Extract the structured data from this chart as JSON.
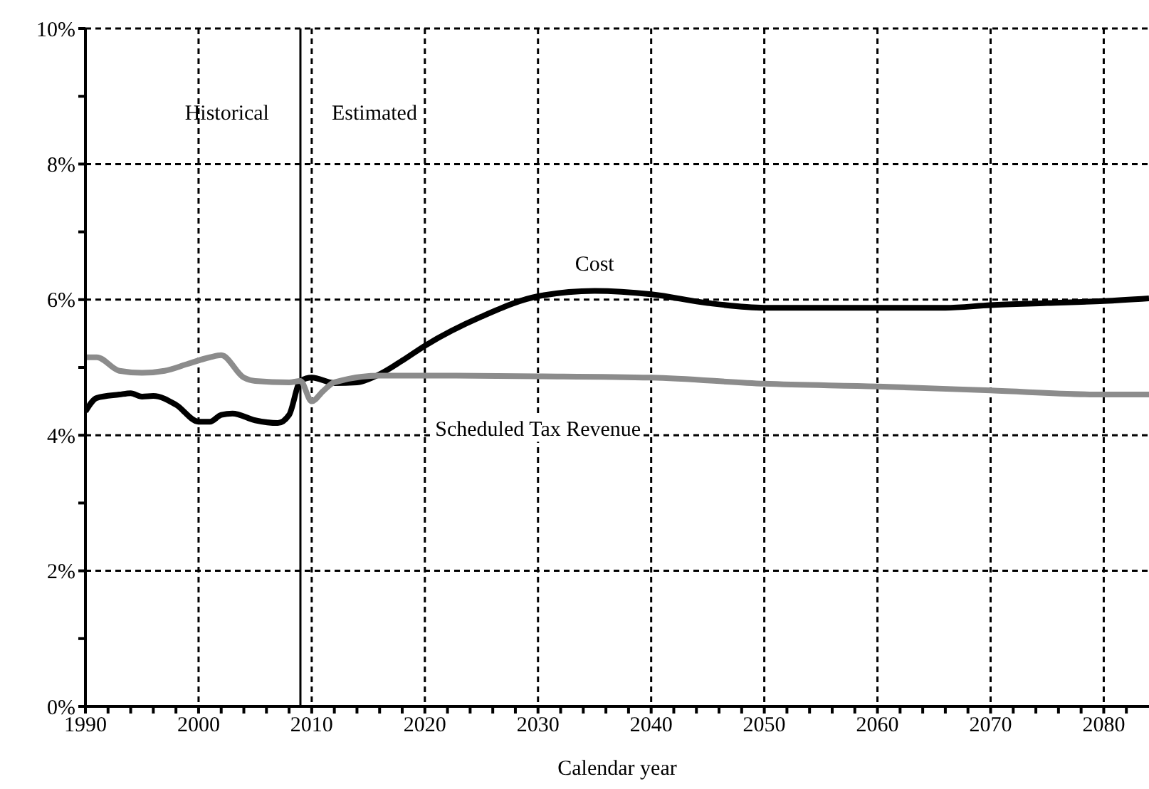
{
  "chart_data": {
    "type": "line",
    "xlabel": "Calendar year",
    "series": [
      {
        "name": "Cost",
        "color": "#000000",
        "x": [
          1990,
          1991,
          1993,
          1994,
          1995,
          1996,
          1998,
          2000,
          2001,
          2002,
          2003,
          2005,
          2007,
          2008,
          2009,
          2010,
          2012,
          2014,
          2016,
          2018,
          2020,
          2025,
          2030,
          2035,
          2040,
          2045,
          2050,
          2060,
          2066,
          2070,
          2075,
          2080,
          2084
        ],
        "values": [
          4.35,
          4.55,
          4.6,
          4.62,
          4.57,
          4.58,
          4.45,
          4.2,
          4.2,
          4.3,
          4.32,
          4.22,
          4.18,
          4.3,
          4.8,
          4.85,
          4.77,
          4.78,
          4.9,
          5.1,
          5.32,
          5.75,
          6.05,
          6.13,
          6.08,
          5.95,
          5.88,
          5.88,
          5.88,
          5.92,
          5.95,
          5.98,
          6.02
        ]
      },
      {
        "name": "Scheduled Tax Revenue",
        "color": "#8c8c8c",
        "x": [
          1990,
          1991,
          1993,
          1995,
          1997,
          1999,
          2001,
          2002,
          2004,
          2005,
          2008,
          2009,
          2010,
          2011,
          2012,
          2016,
          2020,
          2030,
          2040,
          2050,
          2060,
          2070,
          2080,
          2084
        ],
        "values": [
          5.15,
          5.15,
          4.95,
          4.92,
          4.95,
          5.05,
          5.15,
          5.18,
          4.85,
          4.8,
          4.78,
          4.8,
          4.5,
          4.65,
          4.78,
          4.88,
          4.88,
          4.87,
          4.85,
          4.76,
          4.72,
          4.66,
          4.6,
          4.6
        ]
      }
    ],
    "xlim": [
      1990,
      2084
    ],
    "xticks": [
      1990,
      {
        "value": 1992,
        "label": null
      },
      {
        "value": 1994,
        "label": null
      },
      {
        "value": 1996,
        "label": null
      },
      {
        "value": 1998,
        "label": null
      },
      2000,
      {
        "value": 2002,
        "label": null
      },
      {
        "value": 2004,
        "label": null
      },
      {
        "value": 2006,
        "label": null
      },
      {
        "value": 2008,
        "label": null
      },
      2010,
      {
        "value": 2012,
        "label": null
      },
      {
        "value": 2014,
        "label": null
      },
      {
        "value": 2016,
        "label": null
      },
      {
        "value": 2018,
        "label": null
      },
      2020,
      {
        "value": 2022,
        "label": null
      },
      {
        "value": 2024,
        "label": null
      },
      {
        "value": 2026,
        "label": null
      },
      {
        "value": 2028,
        "label": null
      },
      2030,
      {
        "value": 2032,
        "label": null
      },
      {
        "value": 2034,
        "label": null
      },
      {
        "value": 2036,
        "label": null
      },
      {
        "value": 2038,
        "label": null
      },
      2040,
      {
        "value": 2042,
        "label": null
      },
      {
        "value": 2044,
        "label": null
      },
      {
        "value": 2046,
        "label": null
      },
      {
        "value": 2048,
        "label": null
      },
      2050,
      {
        "value": 2052,
        "label": null
      },
      {
        "value": 2054,
        "label": null
      },
      {
        "value": 2056,
        "label": null
      },
      {
        "value": 2058,
        "label": null
      },
      2060,
      {
        "value": 2062,
        "label": null
      },
      {
        "value": 2064,
        "label": null
      },
      {
        "value": 2066,
        "label": null
      },
      {
        "value": 2068,
        "label": null
      },
      2070,
      {
        "value": 2072,
        "label": null
      },
      {
        "value": 2074,
        "label": null
      },
      {
        "value": 2076,
        "label": null
      },
      {
        "value": 2078,
        "label": null
      },
      2080,
      {
        "value": 2082,
        "label": null
      }
    ],
    "ylim": [
      0,
      10
    ],
    "yticks": [
      {
        "value": 0,
        "label": "0%"
      },
      {
        "value": 1,
        "label": null
      },
      {
        "value": 2,
        "label": "2%"
      },
      {
        "value": 3,
        "label": null
      },
      {
        "value": 4,
        "label": "4%"
      },
      {
        "value": 5,
        "label": null
      },
      {
        "value": 6,
        "label": "6%"
      },
      {
        "value": 7,
        "label": null
      },
      {
        "value": 8,
        "label": "8%"
      },
      {
        "value": 9,
        "label": null
      },
      {
        "value": 10,
        "label": "10%"
      }
    ],
    "grid": true,
    "line_style": "solid",
    "marker": "none",
    "ref_lines": [
      {
        "axis": "x",
        "value": 2009,
        "color": "#000000",
        "line_style": "solid"
      }
    ],
    "annotations": [
      "Historical",
      "Estimated"
    ]
  }
}
